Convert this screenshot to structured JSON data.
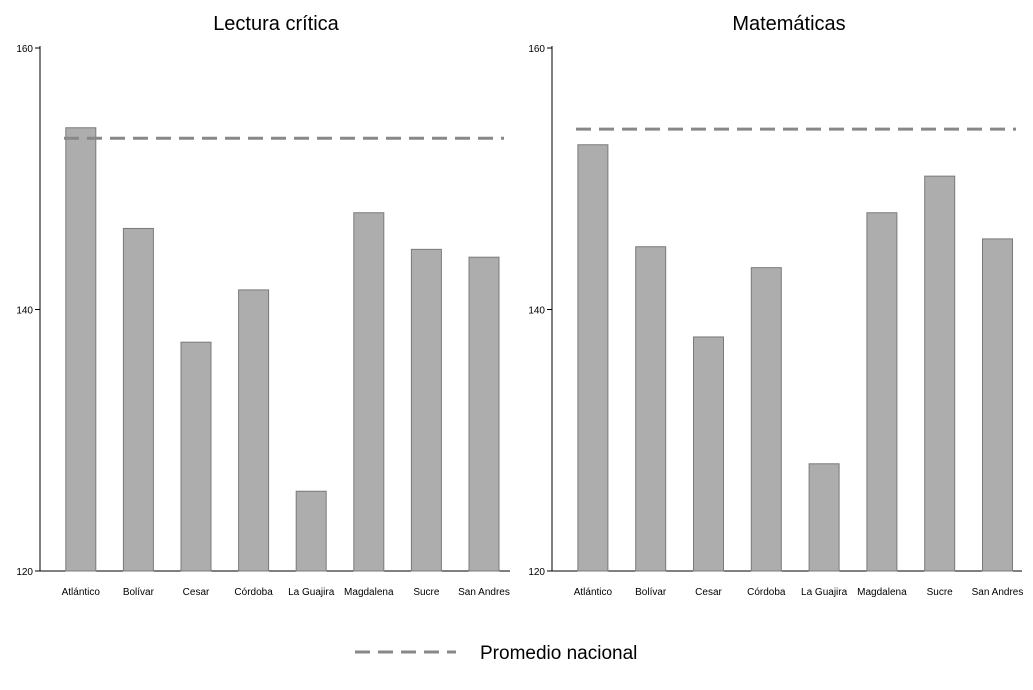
{
  "chart_data": [
    {
      "type": "bar",
      "title": "Lectura crítica",
      "categories": [
        "Atlántico",
        "Bolívar",
        "Cesar",
        "Córdoba",
        "La Guajira",
        "Magdalena",
        "Sucre",
        "San Andres"
      ],
      "values": [
        153.9,
        146.2,
        137.5,
        141.5,
        126.1,
        147.4,
        144.6,
        144.0
      ],
      "reference_line": {
        "label": "Promedio nacional",
        "value": 153.1,
        "style": "dashed",
        "color": "#888888"
      },
      "ylim": [
        120,
        160
      ],
      "yticks": [
        120,
        140,
        160
      ],
      "bar_color": "#adadad",
      "grid": false
    },
    {
      "type": "bar",
      "title": "Matemáticas",
      "categories": [
        "Atlántico",
        "Bolívar",
        "Cesar",
        "Córdoba",
        "La Guajira",
        "Magdalena",
        "Sucre",
        "San Andres"
      ],
      "values": [
        152.6,
        144.8,
        137.9,
        143.2,
        128.2,
        147.4,
        150.2,
        145.4
      ],
      "reference_line": {
        "label": "Promedio nacional",
        "value": 153.8,
        "style": "dashed",
        "color": "#888888"
      },
      "ylim": [
        120,
        160
      ],
      "yticks": [
        120,
        140,
        160
      ],
      "bar_color": "#adadad",
      "grid": false
    }
  ],
  "legend": {
    "label": "Promedio nacional",
    "style": "dashed",
    "placement": "bottom-center"
  }
}
